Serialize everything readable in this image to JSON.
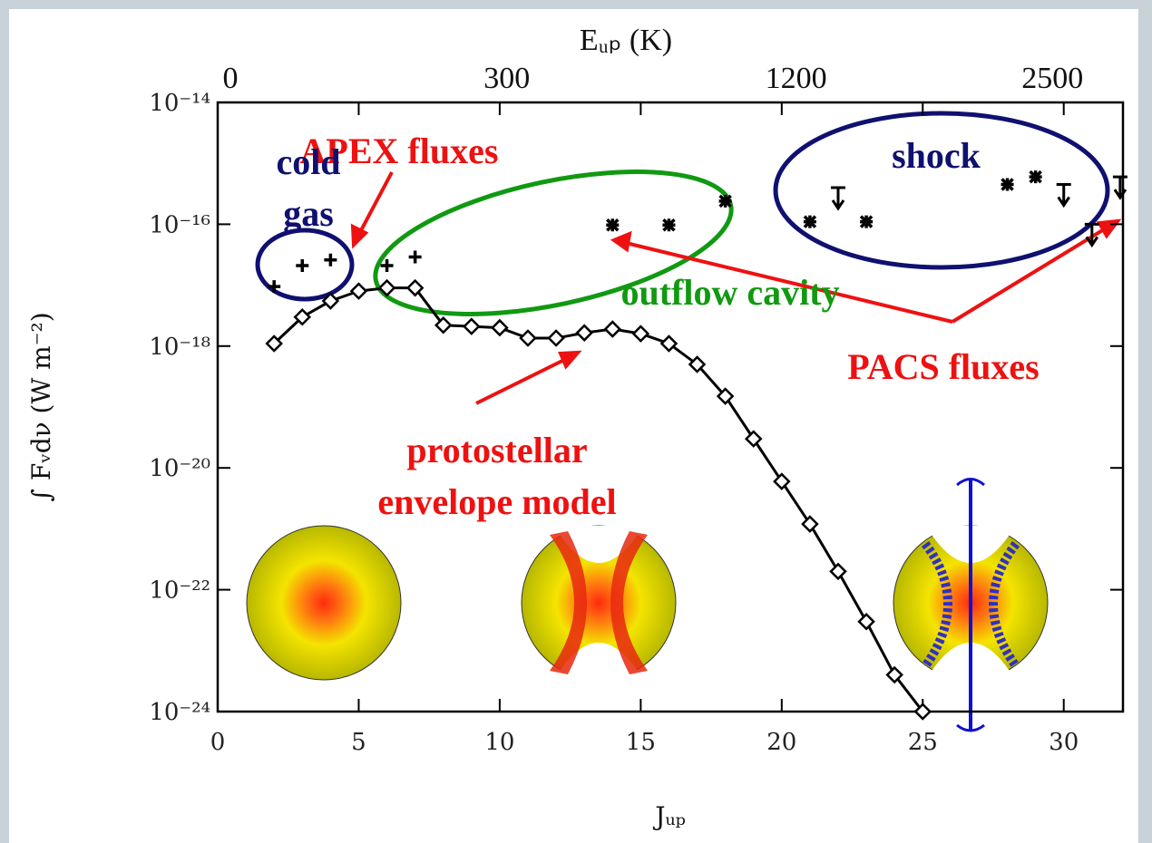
{
  "chart_data": {
    "type": "line",
    "xlabel": "Jᵤₚ",
    "ylabel": "∫ Fᵥdν (W m⁻²)",
    "x2label": "Eᵤₚ (K)",
    "xlim": [
      0,
      32.1
    ],
    "xticks": [
      0,
      5,
      10,
      15,
      20,
      25,
      30
    ],
    "ylim": [
      1e-24,
      1e-14
    ],
    "log_y": true,
    "yticks": [
      {
        "value": 1e-14,
        "label": "10⁻¹⁴"
      },
      {
        "value": 1e-16,
        "label": "10⁻¹⁶"
      },
      {
        "value": 1e-18,
        "label": "10⁻¹⁸"
      },
      {
        "value": 1e-20,
        "label": "10⁻²⁰"
      },
      {
        "value": 1e-22,
        "label": "10⁻²²"
      },
      {
        "value": 1e-24,
        "label": "10⁻²⁴"
      }
    ],
    "x2lim": [
      0,
      2940
    ],
    "x2scale": "sqrt",
    "x2ticks": [
      0,
      300,
      1200,
      2500
    ],
    "series": [
      {
        "color": "#000000",
        "marker": "diamond",
        "line": true,
        "x": [
          2,
          3,
          4,
          5,
          6,
          7,
          8,
          9,
          10,
          11,
          12,
          13,
          14,
          15,
          16,
          17,
          18,
          19,
          20,
          21,
          22,
          23,
          24,
          25
        ],
        "values": [
          1.1e-18,
          3e-18,
          5.5e-18,
          8e-18,
          9e-18,
          9e-18,
          2.2e-18,
          2.1e-18,
          2e-18,
          1.35e-18,
          1.35e-18,
          1.65e-18,
          1.9e-18,
          1.6e-18,
          1.1e-18,
          5e-19,
          1.5e-19,
          3e-20,
          6e-21,
          1.2e-21,
          2e-22,
          3e-23,
          4e-24,
          1e-24
        ]
      },
      {
        "color": "#000000",
        "marker": "plus",
        "line": false,
        "x": [
          2,
          3,
          4,
          6,
          7
        ],
        "values": [
          9.5e-18,
          2.1e-17,
          2.6e-17,
          2.1e-17,
          2.9e-17
        ]
      },
      {
        "color": "#000000",
        "marker": "asterisk",
        "line": false,
        "x": [
          14,
          16,
          18,
          21,
          23,
          28,
          29
        ],
        "values": [
          9.7e-17,
          9.7e-17,
          2.4e-16,
          1.1e-16,
          1.1e-16,
          4.5e-16,
          6e-16
        ]
      },
      {
        "color": "#000000",
        "marker": "upper-limit",
        "line": false,
        "x": [
          22,
          30,
          31,
          32
        ],
        "values": [
          4e-16,
          4.5e-16,
          1e-16,
          6e-16
        ]
      }
    ],
    "annotations": [
      {
        "text": [
          "APEX fluxes"
        ],
        "color": "#ee1111"
      },
      {
        "text": [
          "cold",
          "gas"
        ],
        "color": "#101070"
      },
      {
        "text": [
          "shock"
        ],
        "color": "#101070"
      },
      {
        "text": [
          "outflow cavity"
        ],
        "color": "#119911"
      },
      {
        "text": [
          "PACS fluxes"
        ],
        "color": "#ee1111"
      },
      {
        "text": [
          "protostellar",
          "envelope model"
        ],
        "color": "#ee1111"
      }
    ]
  }
}
